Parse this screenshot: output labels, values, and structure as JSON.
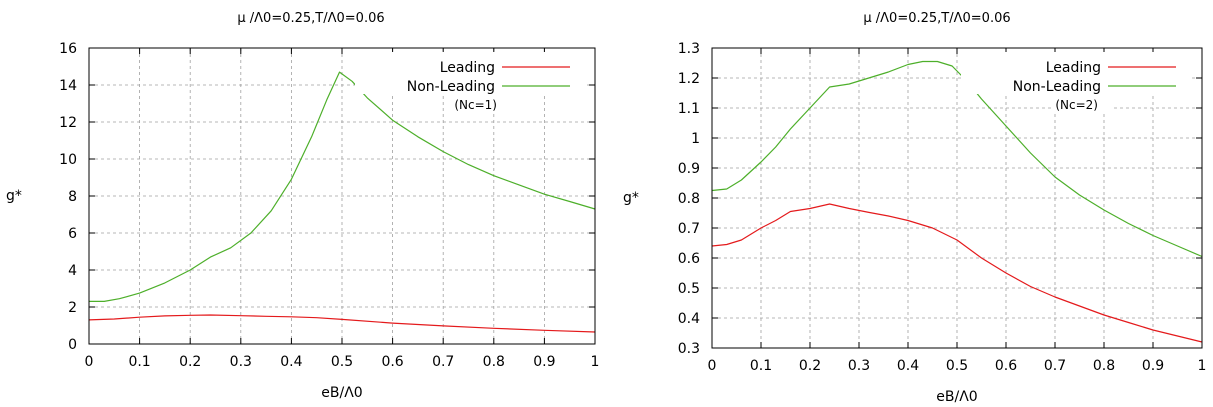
{
  "chart_data": [
    {
      "type": "line",
      "title": "μ /Λ0=0.25,T/Λ0=0.06",
      "xlabel": "eB/Λ0",
      "ylabel": "g*",
      "xlim": [
        0,
        1
      ],
      "ylim": [
        0,
        16
      ],
      "xticks": [
        "0",
        "0.1",
        "0.2",
        "0.3",
        "0.4",
        "0.5",
        "0.6",
        "0.7",
        "0.8",
        "0.9",
        "1"
      ],
      "yticks": [
        "0",
        "2",
        "4",
        "6",
        "8",
        "10",
        "12",
        "14",
        "16"
      ],
      "grid": true,
      "legend_position": "top-right",
      "annotation": "(Nc=1)",
      "series": [
        {
          "name": "Leading",
          "color": "#e41a1c",
          "x": [
            0,
            0.05,
            0.1,
            0.15,
            0.2,
            0.24,
            0.3,
            0.35,
            0.4,
            0.45,
            0.5,
            0.6,
            0.7,
            0.8,
            0.9,
            1.0
          ],
          "y": [
            1.3,
            1.35,
            1.45,
            1.52,
            1.55,
            1.57,
            1.53,
            1.5,
            1.47,
            1.42,
            1.33,
            1.13,
            0.98,
            0.85,
            0.74,
            0.65
          ]
        },
        {
          "name": "Non-Leading",
          "color": "#4daf2a",
          "x": [
            0,
            0.03,
            0.06,
            0.1,
            0.15,
            0.2,
            0.24,
            0.28,
            0.32,
            0.36,
            0.4,
            0.44,
            0.47,
            0.495,
            0.52,
            0.55,
            0.6,
            0.65,
            0.7,
            0.75,
            0.8,
            0.85,
            0.9,
            0.95,
            1.0
          ],
          "y": [
            2.3,
            2.3,
            2.45,
            2.75,
            3.3,
            4.0,
            4.7,
            5.2,
            6.0,
            7.2,
            8.9,
            11.2,
            13.2,
            14.7,
            14.2,
            13.3,
            12.1,
            11.2,
            10.4,
            9.7,
            9.1,
            8.6,
            8.1,
            7.7,
            7.3
          ]
        }
      ]
    },
    {
      "type": "line",
      "title": "μ /Λ0=0.25,T/Λ0=0.06",
      "xlabel": "eB/Λ0",
      "ylabel": "g*",
      "xlim": [
        0,
        1
      ],
      "ylim": [
        0.3,
        1.3
      ],
      "xticks": [
        "0",
        "0.1",
        "0.2",
        "0.3",
        "0.4",
        "0.5",
        "0.6",
        "0.7",
        "0.8",
        "0.9",
        "1"
      ],
      "yticks": [
        "0.3",
        "0.4",
        "0.5",
        "0.6",
        "0.7",
        "0.8",
        "0.9",
        "1",
        "1.1",
        "1.2",
        "1.3"
      ],
      "grid": true,
      "legend_position": "top-right",
      "annotation": "(Nc=2)",
      "series": [
        {
          "name": "Leading",
          "color": "#e41a1c",
          "x": [
            0,
            0.03,
            0.06,
            0.1,
            0.13,
            0.16,
            0.2,
            0.24,
            0.28,
            0.32,
            0.36,
            0.4,
            0.45,
            0.5,
            0.55,
            0.6,
            0.65,
            0.7,
            0.75,
            0.8,
            0.85,
            0.9,
            0.95,
            1.0
          ],
          "y": [
            0.64,
            0.645,
            0.66,
            0.7,
            0.725,
            0.755,
            0.765,
            0.78,
            0.765,
            0.752,
            0.74,
            0.725,
            0.7,
            0.66,
            0.6,
            0.55,
            0.505,
            0.47,
            0.44,
            0.41,
            0.385,
            0.36,
            0.34,
            0.32
          ]
        },
        {
          "name": "Non-Leading",
          "color": "#4daf2a",
          "x": [
            0,
            0.03,
            0.06,
            0.1,
            0.13,
            0.16,
            0.2,
            0.24,
            0.28,
            0.32,
            0.36,
            0.4,
            0.43,
            0.46,
            0.49,
            0.52,
            0.55,
            0.6,
            0.65,
            0.7,
            0.75,
            0.8,
            0.85,
            0.9,
            0.95,
            1.0
          ],
          "y": [
            0.825,
            0.83,
            0.86,
            0.92,
            0.97,
            1.03,
            1.1,
            1.17,
            1.18,
            1.2,
            1.22,
            1.245,
            1.255,
            1.255,
            1.24,
            1.19,
            1.13,
            1.04,
            0.95,
            0.87,
            0.81,
            0.76,
            0.715,
            0.675,
            0.64,
            0.605
          ]
        }
      ]
    }
  ]
}
